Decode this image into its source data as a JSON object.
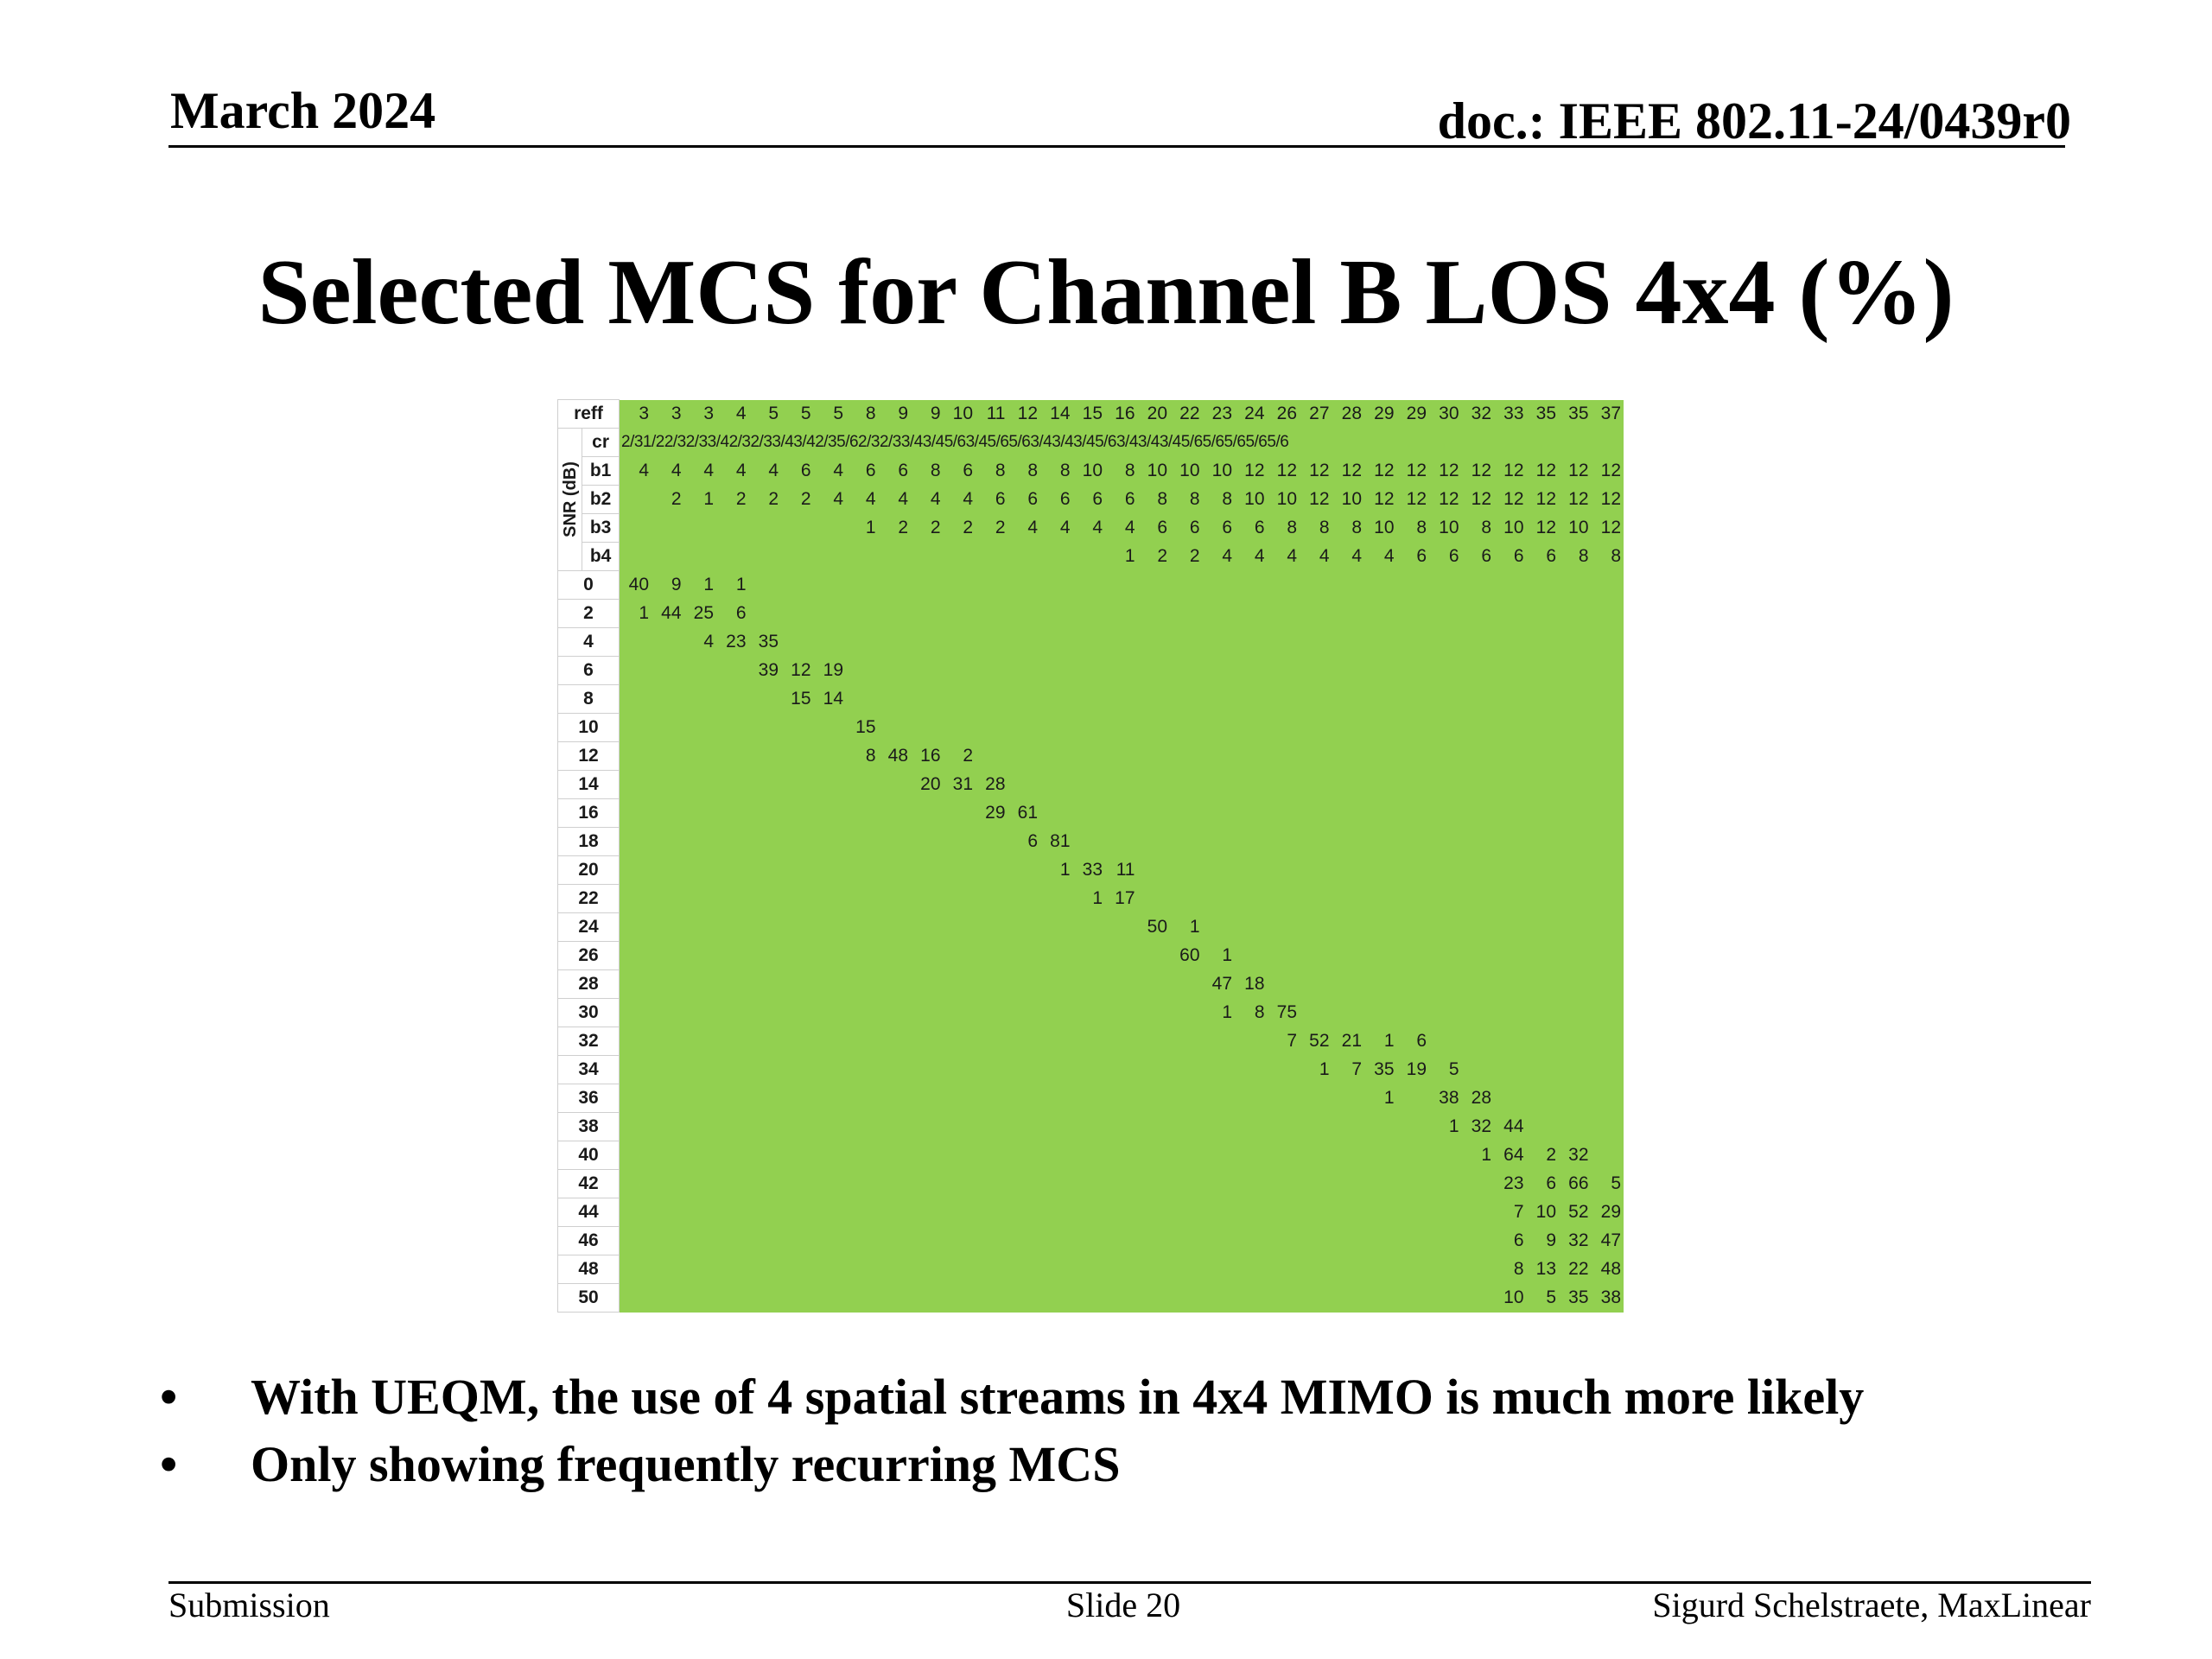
{
  "header": {
    "date": "March 2024",
    "doc": "doc.: IEEE 802.11-24/0439r0"
  },
  "title": "Selected MCS for Channel B LOS 4x4 (%)",
  "table": {
    "axis_label": "SNR (dB)",
    "param_rows": [
      {
        "label": "reff",
        "values": [
          "3",
          "3",
          "3",
          "4",
          "5",
          "5",
          "5",
          "8",
          "9",
          "9",
          "10",
          "11",
          "12",
          "14",
          "15",
          "16",
          "20",
          "22",
          "23",
          "24",
          "26",
          "27",
          "28",
          "29",
          "29",
          "30",
          "32",
          "33",
          "35",
          "35",
          "37"
        ]
      },
      {
        "label": "cr",
        "text": "2/31/22/32/33/42/32/33/43/42/35/62/32/33/43/45/63/45/65/63/43/43/45/63/43/43/45/65/65/65/65/6"
      },
      {
        "label": "b1",
        "values": [
          "4",
          "4",
          "4",
          "4",
          "4",
          "6",
          "4",
          "6",
          "6",
          "8",
          "6",
          "8",
          "8",
          "8",
          "10",
          "8",
          "10",
          "10",
          "10",
          "12",
          "12",
          "12",
          "12",
          "12",
          "12",
          "12",
          "12",
          "12",
          "12",
          "12",
          "12"
        ]
      },
      {
        "label": "b2",
        "values": [
          "",
          "2",
          "1",
          "2",
          "2",
          "2",
          "4",
          "4",
          "4",
          "4",
          "4",
          "6",
          "6",
          "6",
          "6",
          "6",
          "8",
          "8",
          "8",
          "10",
          "10",
          "12",
          "10",
          "12",
          "12",
          "12",
          "12",
          "12",
          "12",
          "12",
          "12"
        ]
      },
      {
        "label": "b3",
        "values": [
          "",
          "",
          "",
          "",
          "",
          "",
          "",
          "1",
          "2",
          "2",
          "2",
          "2",
          "4",
          "4",
          "4",
          "4",
          "6",
          "6",
          "6",
          "6",
          "8",
          "8",
          "8",
          "10",
          "8",
          "10",
          "8",
          "10",
          "12",
          "10",
          "12"
        ]
      },
      {
        "label": "b4",
        "values": [
          "",
          "",
          "",
          "",
          "",
          "",
          "",
          "",
          "",
          "",
          "",
          "",
          "",
          "",
          "",
          "1",
          "2",
          "2",
          "4",
          "4",
          "4",
          "4",
          "4",
          "4",
          "6",
          "6",
          "6",
          "6",
          "6",
          "8",
          "8"
        ]
      }
    ],
    "snr_rows": [
      {
        "snr": "0",
        "cells": {
          "0": "40",
          "1": "9",
          "2": "1",
          "3": "1"
        }
      },
      {
        "snr": "2",
        "cells": {
          "0": "1",
          "1": "44",
          "2": "25",
          "3": "6"
        }
      },
      {
        "snr": "4",
        "cells": {
          "2": "4",
          "3": "23",
          "4": "35"
        }
      },
      {
        "snr": "6",
        "cells": {
          "4": "39",
          "5": "12",
          "6": "19"
        }
      },
      {
        "snr": "8",
        "cells": {
          "5": "15",
          "6": "14"
        }
      },
      {
        "snr": "10",
        "cells": {
          "7": "15"
        }
      },
      {
        "snr": "12",
        "cells": {
          "7": "8",
          "8": "48",
          "9": "16",
          "10": "2"
        }
      },
      {
        "snr": "14",
        "cells": {
          "9": "20",
          "10": "31",
          "11": "28"
        }
      },
      {
        "snr": "16",
        "cells": {
          "11": "29",
          "12": "61"
        }
      },
      {
        "snr": "18",
        "cells": {
          "12": "6",
          "13": "81"
        }
      },
      {
        "snr": "20",
        "cells": {
          "13": "1",
          "14": "33",
          "15": "11"
        }
      },
      {
        "snr": "22",
        "cells": {
          "14": "1",
          "15": "17"
        }
      },
      {
        "snr": "24",
        "cells": {
          "16": "50",
          "17": "1"
        }
      },
      {
        "snr": "26",
        "cells": {
          "17": "60",
          "18": "1"
        }
      },
      {
        "snr": "28",
        "cells": {
          "18": "47",
          "19": "18"
        }
      },
      {
        "snr": "30",
        "cells": {
          "18": "1",
          "19": "8",
          "20": "75"
        }
      },
      {
        "snr": "32",
        "cells": {
          "20": "7",
          "21": "52",
          "22": "21",
          "23": "1",
          "24": "6"
        }
      },
      {
        "snr": "34",
        "cells": {
          "21": "1",
          "22": "7",
          "23": "35",
          "24": "19",
          "25": "5"
        }
      },
      {
        "snr": "36",
        "cells": {
          "23": "1",
          "25": "38",
          "26": "28"
        }
      },
      {
        "snr": "38",
        "cells": {
          "25": "1",
          "26": "32",
          "27": "44"
        }
      },
      {
        "snr": "40",
        "cells": {
          "26": "1",
          "27": "64",
          "28": "2",
          "29": "32"
        }
      },
      {
        "snr": "42",
        "cells": {
          "27": "23",
          "28": "6",
          "29": "66",
          "30": "5"
        }
      },
      {
        "snr": "44",
        "cells": {
          "27": "7",
          "28": "10",
          "29": "52",
          "30": "29"
        }
      },
      {
        "snr": "46",
        "cells": {
          "27": "6",
          "28": "9",
          "29": "32",
          "30": "47"
        }
      },
      {
        "snr": "48",
        "cells": {
          "27": "8",
          "28": "13",
          "29": "22",
          "30": "48"
        }
      },
      {
        "snr": "50",
        "cells": {
          "27": "10",
          "28": "5",
          "29": "35",
          "30": "38"
        }
      }
    ],
    "cell_color": "#92d050"
  },
  "bullets": [
    "With UEQM, the use of 4 spatial streams in 4x4 MIMO is much more likely",
    "Only showing frequently recurring MCS"
  ],
  "bullet_char": "•",
  "footer": {
    "left": "Submission",
    "center": "Slide 20",
    "right": "Sigurd Schelstraete, MaxLinear"
  }
}
